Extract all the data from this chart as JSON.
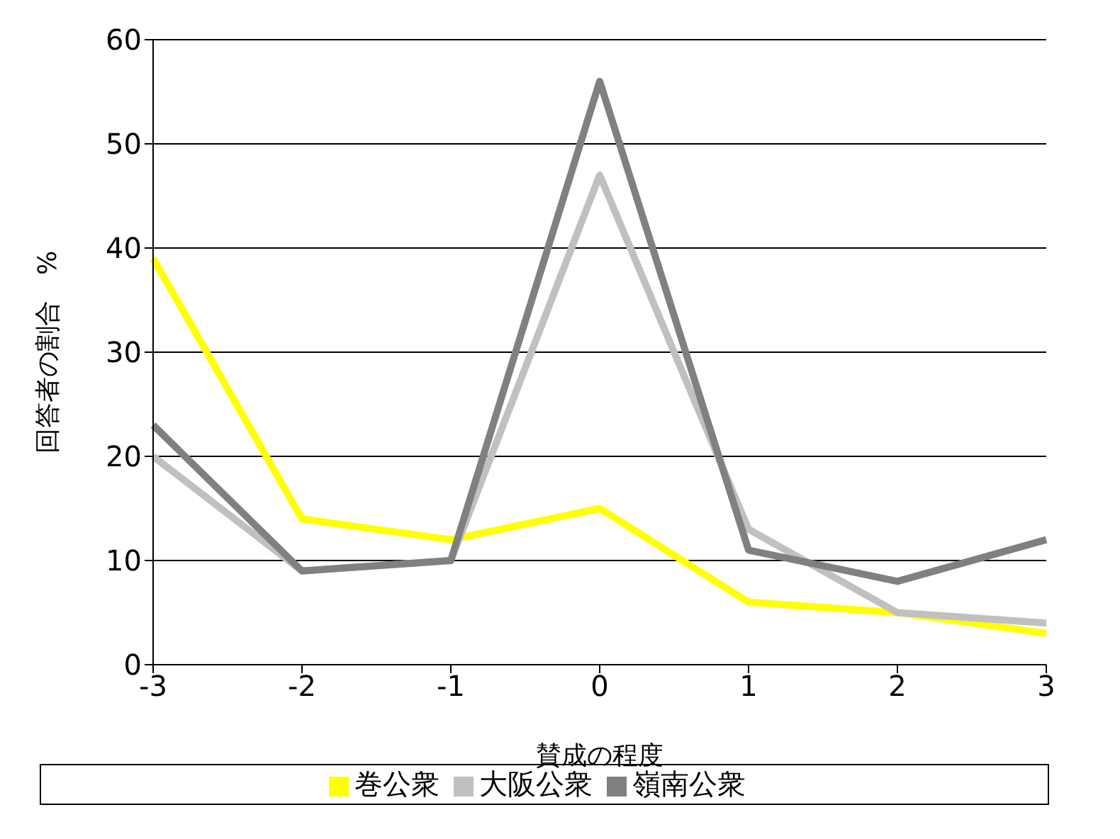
{
  "chart_data": {
    "type": "line",
    "xlabel": "賛成の程度",
    "ylabel": "回答者の割合　%",
    "categories": [
      "-3",
      "-2",
      "-1",
      "0",
      "1",
      "2",
      "3"
    ],
    "series": [
      {
        "name": "巻公衆",
        "color": "#ffff00",
        "values": [
          39,
          14,
          12,
          15,
          6,
          5,
          3
        ]
      },
      {
        "name": "大阪公衆",
        "color": "#c0c0c0",
        "values": [
          20,
          9,
          10,
          47,
          13,
          5,
          4
        ]
      },
      {
        "name": "嶺南公衆",
        "color": "#808080",
        "values": [
          23,
          9,
          10,
          56,
          11,
          8,
          12
        ]
      }
    ],
    "ylim": [
      0,
      60
    ],
    "yticks": [
      0,
      10,
      20,
      30,
      40,
      50,
      60
    ],
    "grid": "y",
    "legend": "bottom",
    "marker": "none",
    "line_style": "solid"
  }
}
